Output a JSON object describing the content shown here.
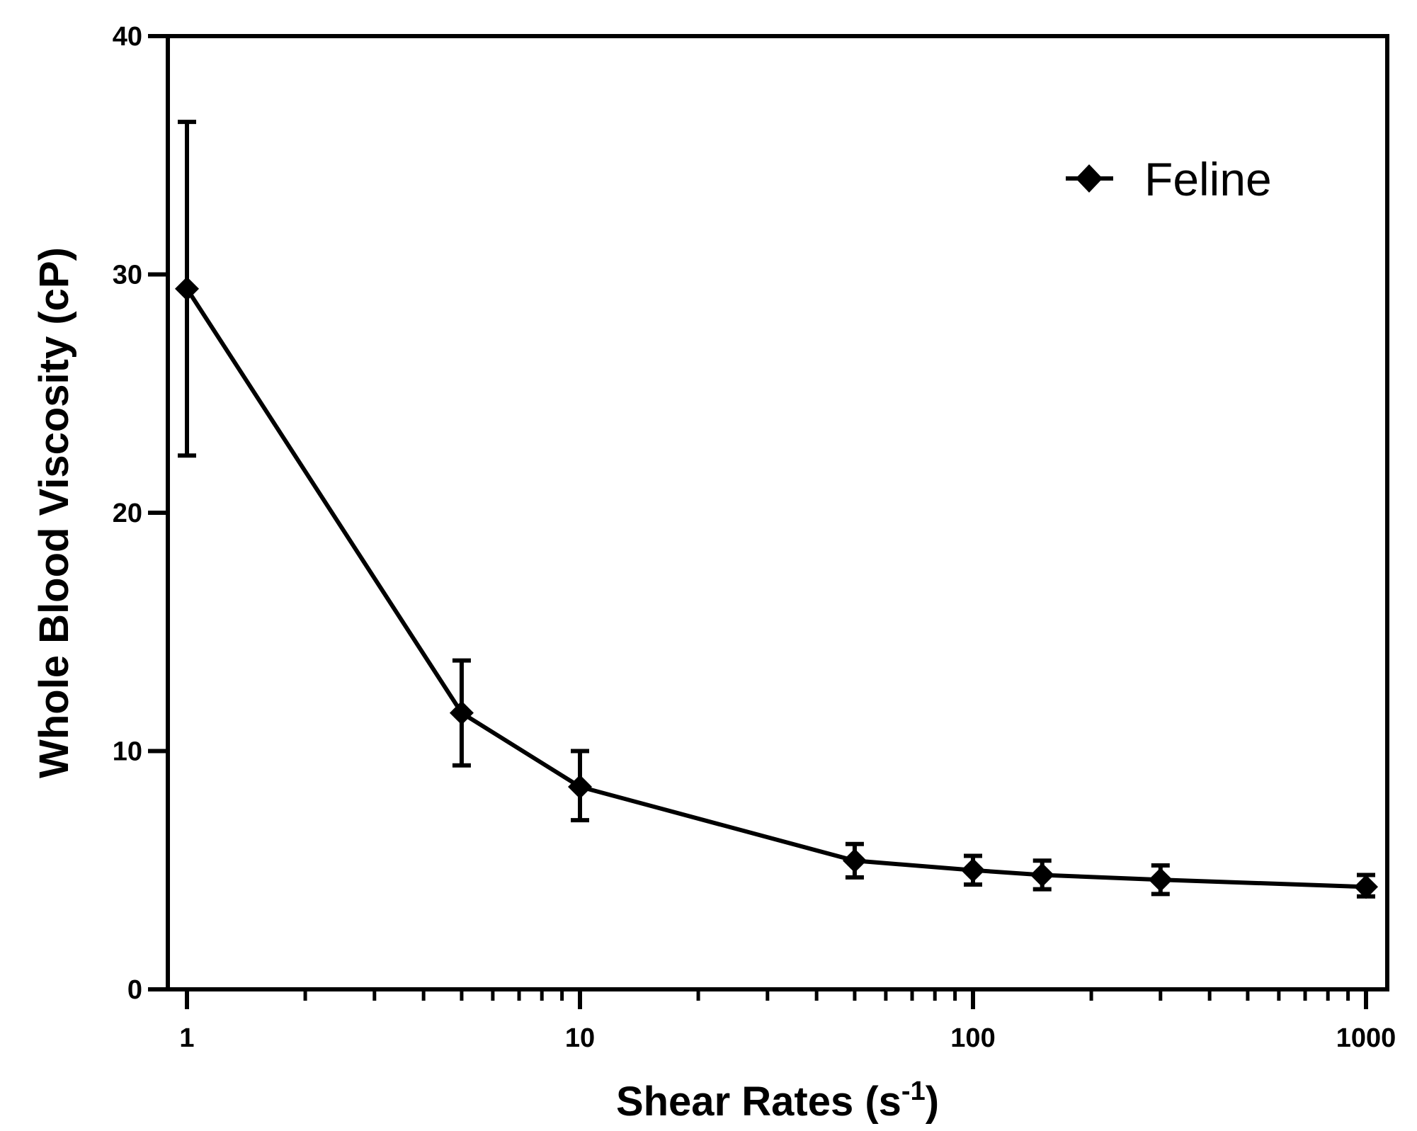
{
  "chart_data": {
    "type": "line",
    "x_scale": "log",
    "xlim": [
      0.9,
      1050
    ],
    "ylim": [
      0,
      40
    ],
    "x_ticks": [
      1,
      10,
      100,
      1000
    ],
    "x_tick_labels": [
      "1",
      "10",
      "100",
      "1000"
    ],
    "y_ticks": [
      0,
      10,
      20,
      30,
      40
    ],
    "y_tick_labels": [
      "0",
      "10",
      "20",
      "30",
      "40"
    ],
    "xlabel": "Shear Rates (s",
    "xlabel_superscript": "-1",
    "xlabel_suffix": ")",
    "ylabel": "Whole Blood Viscosity (cP)",
    "legend_position": "top-right",
    "grid": false,
    "series": [
      {
        "name": "Feline",
        "marker": "diamond",
        "color": "#000000",
        "points": [
          {
            "x": 1,
            "y": 29.4,
            "err_low": 22.4,
            "err_high": 36.4
          },
          {
            "x": 5,
            "y": 11.6,
            "err_low": 9.4,
            "err_high": 13.8
          },
          {
            "x": 10,
            "y": 8.5,
            "err_low": 7.1,
            "err_high": 10.0
          },
          {
            "x": 50,
            "y": 5.4,
            "err_low": 4.7,
            "err_high": 6.1
          },
          {
            "x": 100,
            "y": 5.0,
            "err_low": 4.4,
            "err_high": 5.6
          },
          {
            "x": 150,
            "y": 4.8,
            "err_low": 4.2,
            "err_high": 5.4
          },
          {
            "x": 300,
            "y": 4.6,
            "err_low": 4.0,
            "err_high": 5.2
          },
          {
            "x": 1000,
            "y": 4.3,
            "err_low": 3.9,
            "err_high": 4.8
          }
        ]
      }
    ]
  }
}
